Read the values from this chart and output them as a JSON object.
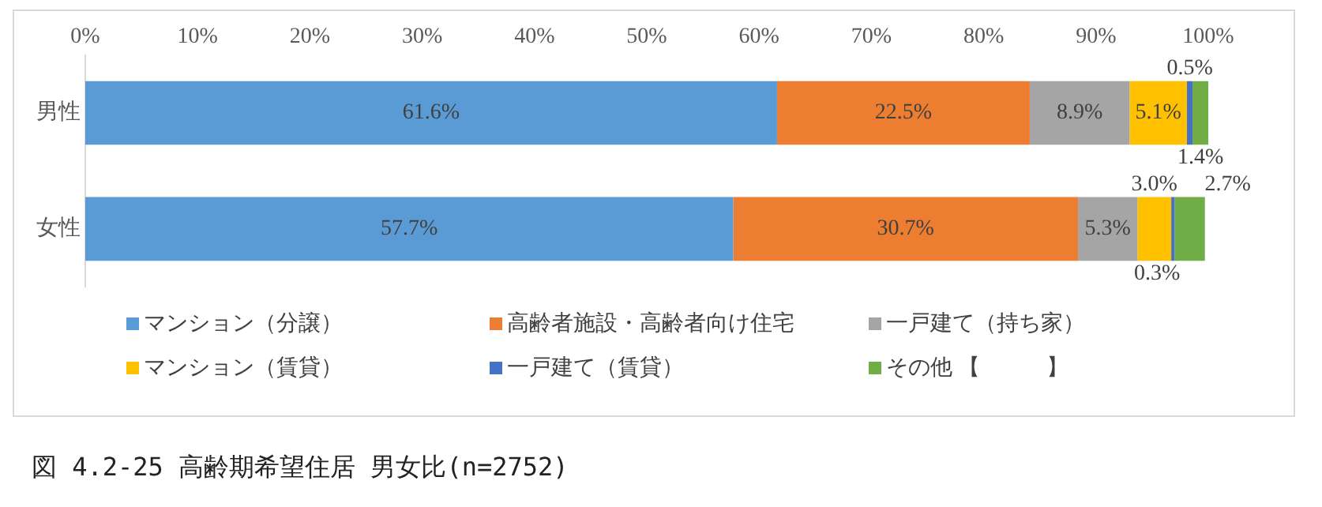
{
  "chart_data": {
    "type": "bar",
    "orientation": "horizontal",
    "stacked": true,
    "title": "図 4.2-25 高齢期希望住居 男女比(n=2752)",
    "categories": [
      "男性",
      "女性"
    ],
    "series": [
      {
        "name": "マンション（分譲）",
        "color": "#5b9bd5",
        "values": [
          61.6,
          57.7
        ],
        "value_labels": [
          "61.6%",
          "57.7%"
        ]
      },
      {
        "name": "高齢者施設・高齢者向け住宅",
        "color": "#ed7d31",
        "values": [
          22.5,
          30.7
        ],
        "value_labels": [
          "22.5%",
          "30.7%"
        ]
      },
      {
        "name": "一戸建て（持ち家）",
        "color": "#a5a5a5",
        "values": [
          8.9,
          5.3
        ],
        "value_labels": [
          "8.9%",
          "5.3%"
        ]
      },
      {
        "name": "マンション（賃貸）",
        "color": "#ffc000",
        "values": [
          5.1,
          3.0
        ],
        "value_labels": [
          "5.1%",
          "3.0%"
        ]
      },
      {
        "name": "一戸建て（賃貸）",
        "color": "#4472c4",
        "values": [
          0.5,
          0.3
        ],
        "value_labels": [
          "0.5%",
          "0.3%"
        ]
      },
      {
        "name": "その他 【　　　】",
        "color": "#70ad47",
        "values": [
          1.4,
          2.7
        ],
        "value_labels": [
          "1.4%",
          "2.7%"
        ]
      }
    ],
    "xlim": [
      0,
      100
    ],
    "xticks": [
      {
        "value": 0,
        "label": "0%"
      },
      {
        "value": 10,
        "label": "10%"
      },
      {
        "value": 20,
        "label": "20%"
      },
      {
        "value": 30,
        "label": "30%"
      },
      {
        "value": 40,
        "label": "40%"
      },
      {
        "value": 50,
        "label": "50%"
      },
      {
        "value": 60,
        "label": "60%"
      },
      {
        "value": 70,
        "label": "70%"
      },
      {
        "value": 80,
        "label": "80%"
      },
      {
        "value": 90,
        "label": "90%"
      },
      {
        "value": 100,
        "label": "100%"
      }
    ],
    "grid": false,
    "legend": "bottom"
  }
}
